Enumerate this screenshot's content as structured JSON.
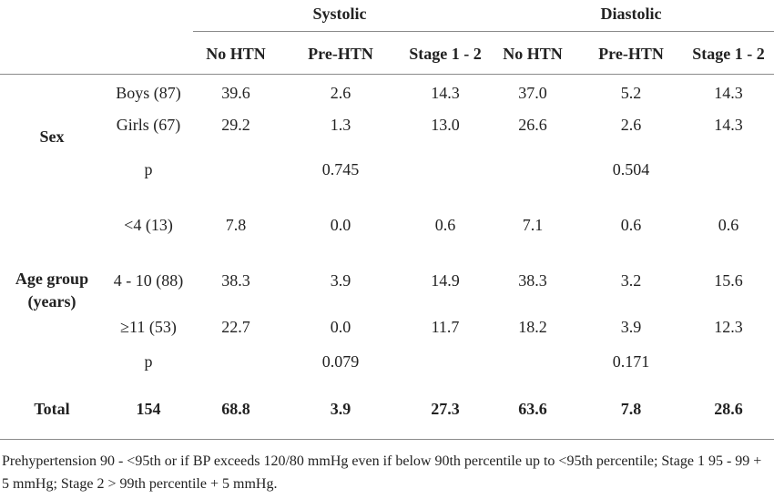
{
  "groups": [
    "Systolic",
    "Diastolic"
  ],
  "subheaders": [
    "No HTN",
    "Pre-HTN",
    "Stage 1 - 2",
    "No HTN",
    "Pre-HTN",
    "Stage 1 - 2"
  ],
  "sections": [
    {
      "label": "Sex",
      "rows": [
        {
          "label": "Boys (87)",
          "values": [
            "39.6",
            "2.6",
            "14.3",
            "37.0",
            "5.2",
            "14.3"
          ]
        },
        {
          "label": "Girls (67)",
          "values": [
            "29.2",
            "1.3",
            "13.0",
            "26.6",
            "2.6",
            "14.3"
          ]
        },
        {
          "label": "p",
          "values": [
            "",
            "0.745",
            "",
            "",
            "0.504",
            ""
          ]
        }
      ]
    },
    {
      "label_line1": "Age group",
      "label_line2": "(years)",
      "rows": [
        {
          "label": "<4 (13)",
          "values": [
            "7.8",
            "0.0",
            "0.6",
            "7.1",
            "0.6",
            "0.6"
          ]
        },
        {
          "label": "4 - 10 (88)",
          "values": [
            "38.3",
            "3.9",
            "14.9",
            "38.3",
            "3.2",
            "15.6"
          ]
        },
        {
          "label": "≥11 (53)",
          "values": [
            "22.7",
            "0.0",
            "11.7",
            "18.2",
            "3.9",
            "12.3"
          ]
        },
        {
          "label": "p",
          "values": [
            "",
            "0.079",
            "",
            "",
            "0.171",
            ""
          ]
        }
      ]
    }
  ],
  "total": {
    "label": "Total",
    "n": "154",
    "values": [
      "68.8",
      "3.9",
      "27.3",
      "63.6",
      "7.8",
      "28.6"
    ]
  },
  "footnote": "Prehypertension 90 - <95th or if BP exceeds 120/80 mmHg even if below 90th percentile up to <95th percentile; Stage 1 95 - 99 + 5 mmHg; Stage 2 > 99th percentile + 5 mmHg."
}
